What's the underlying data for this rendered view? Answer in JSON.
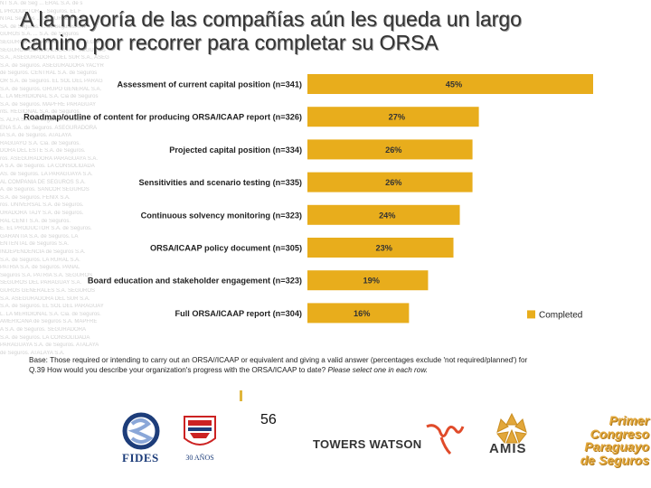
{
  "slide": {
    "title_line1": "A la mayoría de las compañías aún les queda un largo",
    "title_line2": "camino por recorrer para completar su ORSA",
    "footnote_base": "Base: Those required or intending to carry out an ORSA//ICAAP or equivalent and giving a valid answer (percentages exclude 'not required/planned') for",
    "footnote_question": "Q.39 How would you describe your organization's progress with the ORSA/ICAAP to date?",
    "footnote_instruction": "Please select one in each row.",
    "page_number": "56"
  },
  "background_watermark_lines": [
    "NT S.A. de Seg ... ERAL S.A. de s",
    "L PRODUCTOR ... Seguros. EL F",
    "NTAL Seguros ... LA RURAL S.A. d",
    "SA. de Seguros. ... de Seguros. INT",
    "GUROS S.A. ... S.A. de Seguros",
    "SEGUROS DEL PARAGUAY S.A. SEGUR",
    "SEGUROS GENERALES S.A. - SEGUROS",
    "S.A., ASEGURADORA DEL SUR S.A., ASEG",
    "S.A. de Seguros. ASEGURADORA YACYR",
    "de Seguros. CENTRAL S.A. de Seguros",
    "OR S.A. de Seguros. EL SOL DEL PARAG",
    "S.A. de Seguros. GRUPO GENERAL S.A.",
    "L. LA MERIDIONAL S.A. Cia de Seguros",
    "S.A. de Seguros. MAPFRE PARAGUAY",
    "nts. REGIONAL S.A. de Seguros.",
    "S. ALFA S.A. de Seguros. ALIANZA",
    "EÑA S.A. de Seguros. ASEGURADORA",
    "IA S.A. de Seguros. ATALAYA",
    "RAGUAYO S.A. Cia. de Seguros.",
    "DORA DEL ESTE S.A. de Seguros.",
    "ros. ASEGURADORA PARAGUAYA S.A.",
    "A S.A. de Seguros. LA CONSOLIDADA",
    "AS. de Seguros. LA PARAGUAYA S.A.",
    "AL COMPAÑIA DE SEGUROS S.A.",
    "A. de Seguros. SANCOR SEGUROS",
    "S.A. de Seguros. FENIX S.A.",
    "ros. UNIVERSAL S.A. de Seguros.",
    "URADORA TAJY S.A. de Seguros.",
    "RAL CENIT S.A. de Seguros.",
    "E. EL PRODUCTOR S.A. de Seguros.",
    "GARANTIA S.A. de Seguros. LA",
    "ENTENTAL de Seguros S.A.",
    "INDEPENDENCIA de Seguros S.A.",
    "S.A. de Seguros. LA RURAL S.A.",
    "PATRIA S.A. de Seguros. PANAL",
    "Seguros S.A. PATRIA S.A. SEGUROS",
    "SEGUROS DEL PARAGUAY S.A.",
    "GUROS GENERALES S.A. SEGUROS",
    "S.A. ASEGURADORA DEL SUR S.A.",
    "S.A. de Seguros. EL SOL DEL PARAGUAY",
    "L. LA MERIDIONAL S.A. Cia. de Seguros.",
    "AMERICANA de Seguros S.A. MAPFRE",
    "A S.A. de Seguros. SEGURADORA",
    "S.A. de Seguros. LA CONSOLIDADA",
    "PARAGUAYA S.A. de Seguros. ATALAYA",
    "de Seguros. ATALAYA S.A."
  ],
  "logos": {
    "fides": "FIDES",
    "thirty_years": "30 AÑOS",
    "towers_watson": "TOWERS WATSON",
    "amis": "AMIS",
    "congreso_lines": [
      "Primer",
      "Congreso",
      "Paraguayo",
      "de Seguros"
    ]
  },
  "colors": {
    "bar": "#E8AD1C",
    "bar_label": "#333333",
    "category_label": "#222222",
    "grid_sep": "#E0B63C"
  },
  "chart_data": {
    "type": "bar",
    "orientation": "horizontal",
    "categories": [
      "Assessment of current capital position (n=341)",
      "Roadmap/outline of content for producing ORSA/ICAAP report (n=326)",
      "Projected capital position (n=334)",
      "Sensitivities and scenario testing (n=335)",
      "Continuous solvency monitoring (n=323)",
      "ORSA/ICAAP policy document (n=305)",
      "Board education and stakeholder engagement (n=323)",
      "Full ORSA/ICAAP report (n=304)"
    ],
    "series": [
      {
        "name": "Completed",
        "values": [
          45,
          27,
          26,
          26,
          24,
          23,
          19,
          16
        ],
        "labels": [
          "45%",
          "27%",
          "26%",
          "26%",
          "24%",
          "23%",
          "19%",
          "16%"
        ]
      }
    ],
    "xlim": [
      0,
      45
    ],
    "legend_position": "bottom-right",
    "grid": false,
    "title": "",
    "xlabel": "",
    "ylabel": ""
  }
}
